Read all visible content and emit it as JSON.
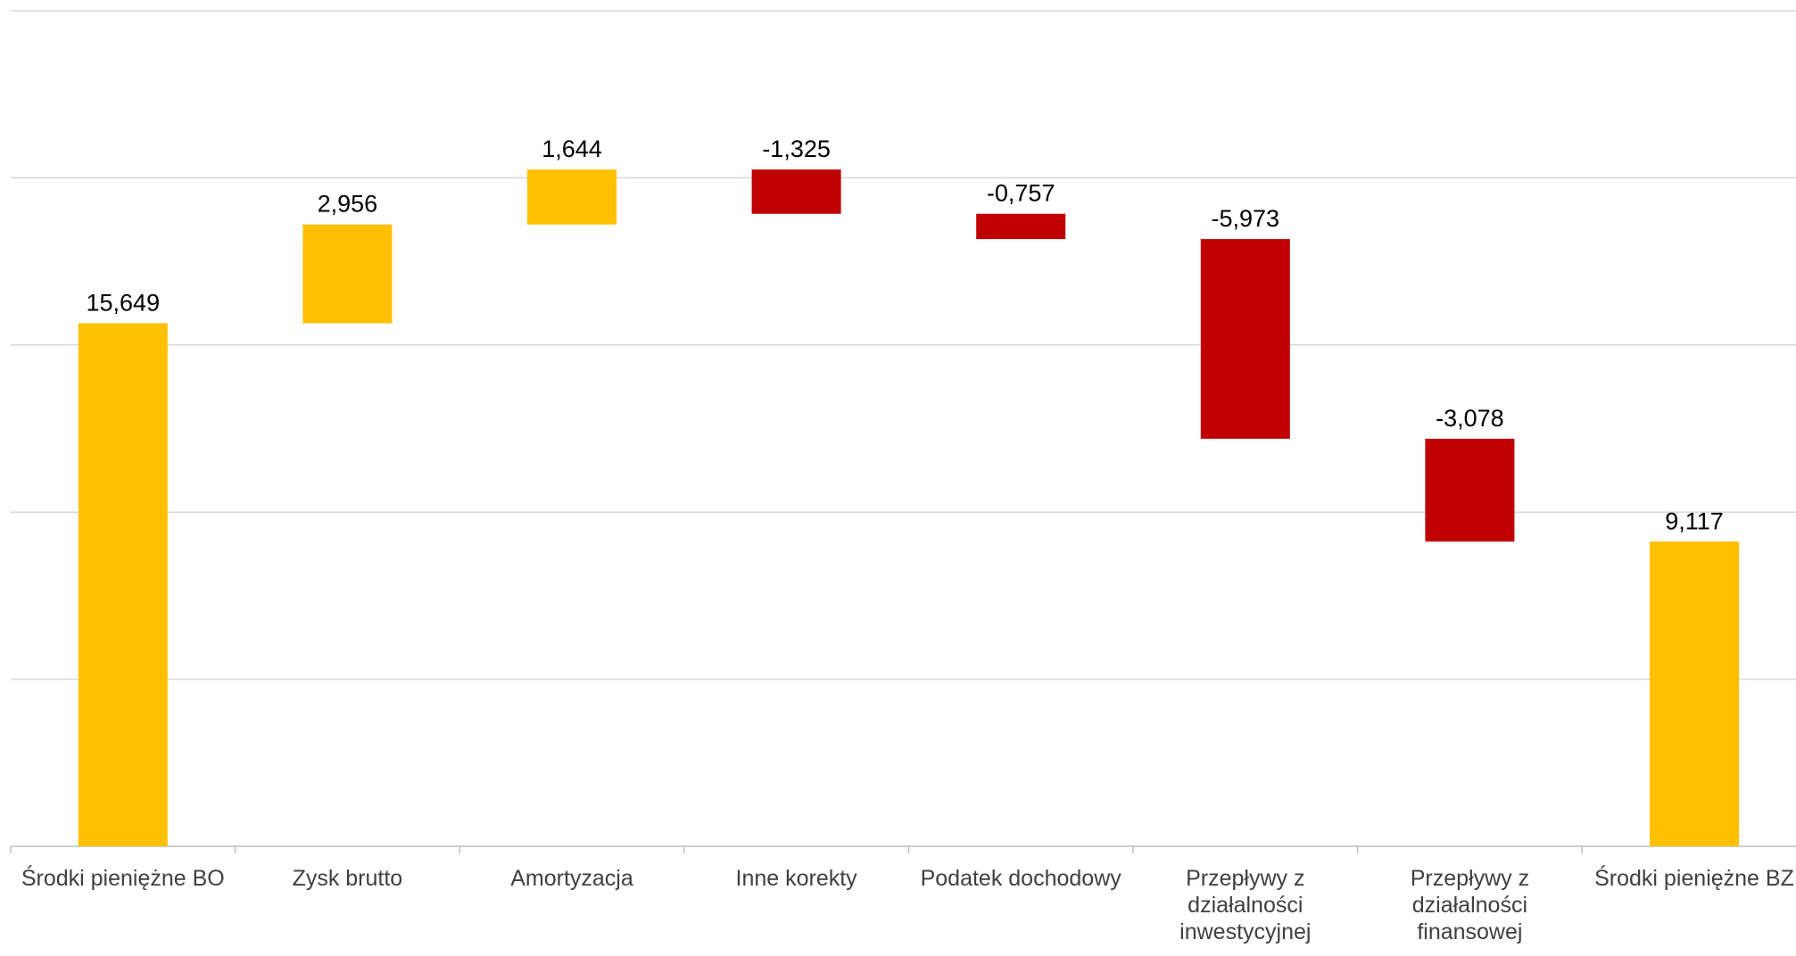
{
  "chart_data": {
    "type": "waterfall",
    "categories": [
      "Środki pieniężne BO",
      "Zysk brutto",
      "Amortyzacja",
      "Inne korekty",
      "Podatek dochodowy",
      "Przepływy z działalności inwestycyjnej",
      "Przepływy z działalności finansowej",
      "Środki pieniężne BZ"
    ],
    "values": [
      15.649,
      2.956,
      1.644,
      -1.325,
      -0.757,
      -5.973,
      -3.078,
      9.117
    ],
    "value_labels": [
      "15,649",
      "2,956",
      "1,644",
      "-1,325",
      "-0,757",
      "-5,973",
      "-3,078",
      "9,117"
    ],
    "total_categories": [
      0,
      7
    ],
    "colors": {
      "increase": "#ffc000",
      "decrease": "#c00000",
      "total": "#ffc000"
    },
    "ylim": [
      0,
      25
    ],
    "yticks": [
      0,
      5,
      10,
      15,
      20,
      25
    ],
    "grid": true
  }
}
